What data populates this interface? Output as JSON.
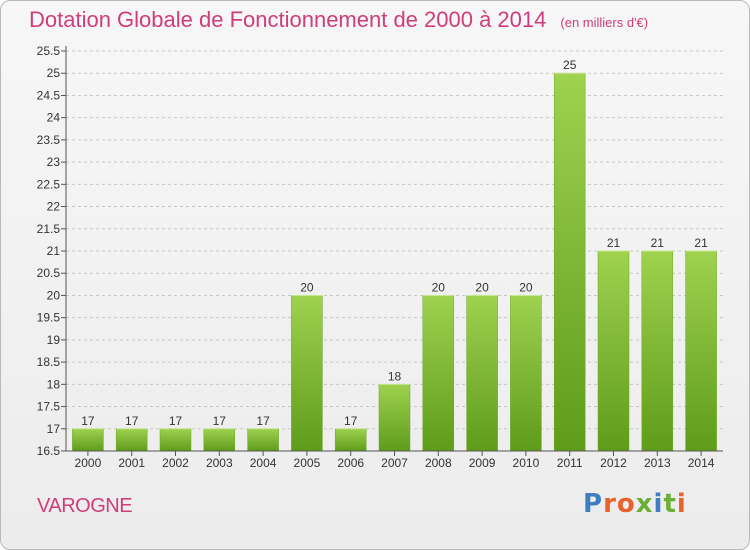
{
  "title": "Dotation Globale de Fonctionnement de 2000 à 2014",
  "subtitle": "(en milliers d'€)",
  "commune": "VAROGNE",
  "logo": {
    "text": "Proxiti",
    "letter_colors": [
      "#3d7fc1",
      "#e8632b",
      "#e8632b",
      "#6ab035",
      "#3d7fc1",
      "#6ab035",
      "#e8632b"
    ]
  },
  "colors": {
    "bar_light": "#9ed24f",
    "bar_dark": "#5e9c1a",
    "title": "#cf3d7a",
    "grid": "#c8c8c8"
  },
  "chart_data": {
    "type": "bar",
    "categories": [
      "2000",
      "2001",
      "2002",
      "2003",
      "2004",
      "2005",
      "2006",
      "2007",
      "2008",
      "2009",
      "2010",
      "2011",
      "2012",
      "2013",
      "2014"
    ],
    "values": [
      17,
      17,
      17,
      17,
      17,
      20,
      17,
      18,
      20,
      20,
      20,
      25,
      21,
      21,
      21
    ],
    "data_labels": [
      "17",
      "17",
      "17",
      "17",
      "17",
      "20",
      "17",
      "18",
      "20",
      "20",
      "20",
      "25",
      "21",
      "21",
      "21"
    ],
    "ylim": [
      16.5,
      25.5
    ],
    "yticks": [
      "16.5",
      "17",
      "17.5",
      "18",
      "18.5",
      "19",
      "19.5",
      "20",
      "20.5",
      "21",
      "21.5",
      "22",
      "22.5",
      "23",
      "23.5",
      "24",
      "24.5",
      "25",
      "25.5"
    ],
    "grid": true,
    "legend": "none"
  }
}
